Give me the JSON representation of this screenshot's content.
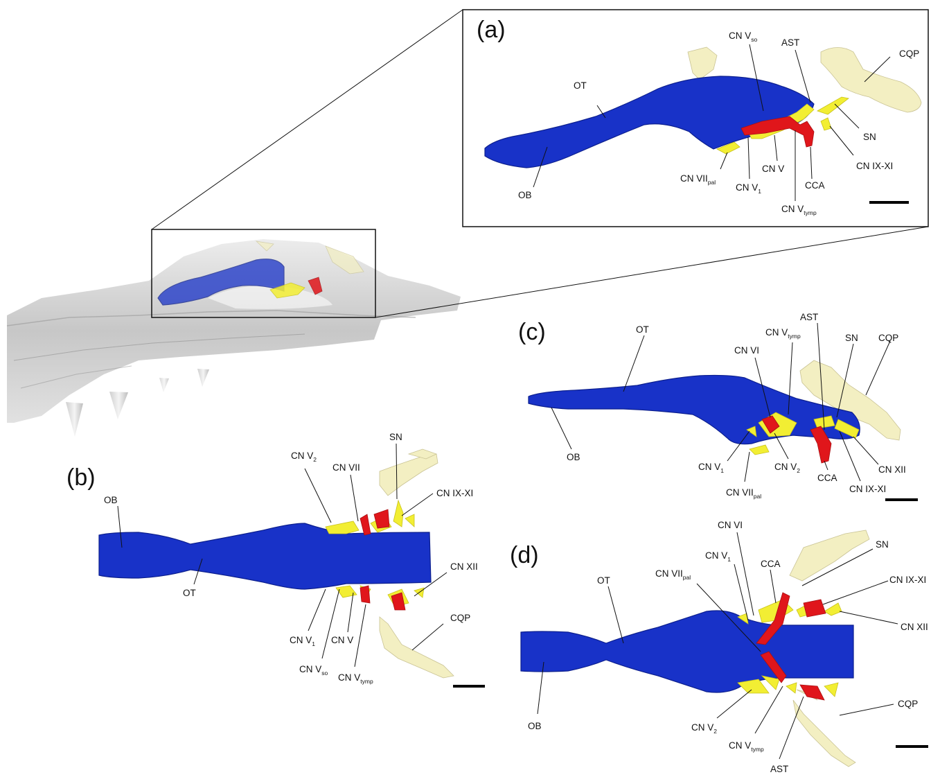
{
  "panels": {
    "a": {
      "letter": "(a)",
      "labels": {
        "ot": "OT",
        "ob": "OB",
        "ast": "AST",
        "cqp": "CQP",
        "sn": "SN",
        "cn_v": "CN V",
        "cca": "CCA",
        "cn_ix_xi": "CN IX-XI",
        "cn_vso_main": "CN V",
        "cn_vso_sub": "so",
        "cn_vii_pal_main": "CN VII",
        "cn_vii_pal_sub": "pal",
        "cn_v1_main": "CN V",
        "cn_v1_sub": "1",
        "cn_vtymp_main": "CN V",
        "cn_vtymp_sub": "tymp"
      }
    },
    "b": {
      "letter": "(b)",
      "labels": {
        "ob": "OB",
        "ot": "OT",
        "sn": "SN",
        "cn_vii": "CN VII",
        "cn_ix_xi": "CN IX-XI",
        "cn_xii": "CN XII",
        "cqp": "CQP",
        "cn_v": "CN V",
        "cn_v2_main": "CN V",
        "cn_v2_sub": "2",
        "cn_v1_main": "CN V",
        "cn_v1_sub": "1",
        "cn_vso_main": "CN V",
        "cn_vso_sub": "so",
        "cn_vtymp_main": "CN V",
        "cn_vtymp_sub": "tymp"
      }
    },
    "c": {
      "letter": "(c)",
      "labels": {
        "ot": "OT",
        "ob": "OB",
        "ast": "AST",
        "sn": "SN",
        "cqp": "CQP",
        "cn_vi": "CN VI",
        "cca": "CCA",
        "cn_xii": "CN XII",
        "cn_ix_xi": "CN IX-XI",
        "cn_vtymp_main": "CN V",
        "cn_vtymp_sub": "tymp",
        "cn_v1_main": "CN V",
        "cn_v1_sub": "1",
        "cn_vii_pal_main": "CN VII",
        "cn_vii_pal_sub": "pal",
        "cn_v2_main": "CN V",
        "cn_v2_sub": "2"
      }
    },
    "d": {
      "letter": "(d)",
      "labels": {
        "ot": "OT",
        "ob": "OB",
        "cn_vi": "CN VI",
        "cca": "CCA",
        "sn": "SN",
        "cn_ix_xi": "CN IX-XI",
        "cn_xii": "CN XII",
        "cqp": "CQP",
        "ast": "AST",
        "cn_vii_pal_main": "CN VII",
        "cn_vii_pal_sub": "pal",
        "cn_v1_main": "CN V",
        "cn_v1_sub": "1",
        "cn_v2_main": "CN V",
        "cn_v2_sub": "2",
        "cn_vtymp_main": "CN V",
        "cn_vtymp_sub": "tymp"
      }
    }
  },
  "colors": {
    "brain_endocast": "#1832c8",
    "nerves": "#f2ee33",
    "arteries": "#e0161b",
    "bone": "#f3efc2",
    "skull_render": "#b8b8b8"
  }
}
